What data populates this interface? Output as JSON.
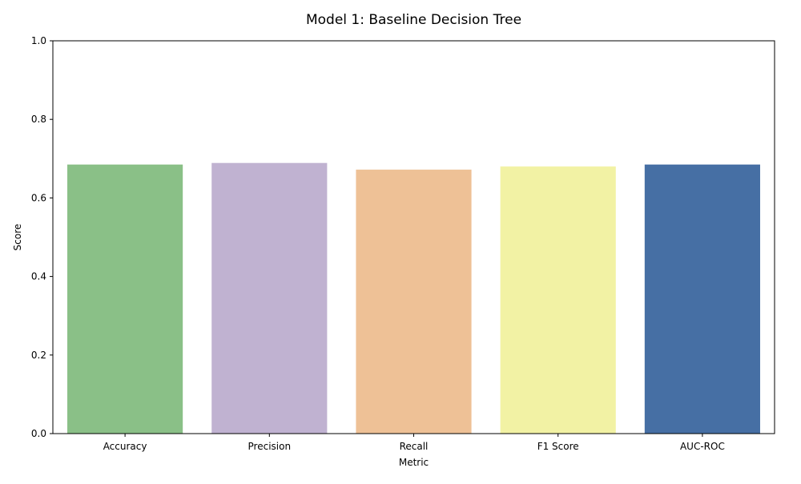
{
  "chart_data": {
    "type": "bar",
    "title": "Model 1: Baseline Decision Tree",
    "xlabel": "Metric",
    "ylabel": "Score",
    "ylim": [
      0,
      1.0
    ],
    "yticks": [
      "0.0",
      "0.2",
      "0.4",
      "0.6",
      "0.8",
      "1.0"
    ],
    "categories": [
      "Accuracy",
      "Precision",
      "Recall",
      "F1 Score",
      "AUC-ROC"
    ],
    "values": [
      0.685,
      0.689,
      0.672,
      0.68,
      0.685
    ],
    "colors": [
      "#8ac087",
      "#c0b2d1",
      "#eec196",
      "#f2f2a4",
      "#466fa4"
    ],
    "grid": false,
    "legend": "none"
  }
}
